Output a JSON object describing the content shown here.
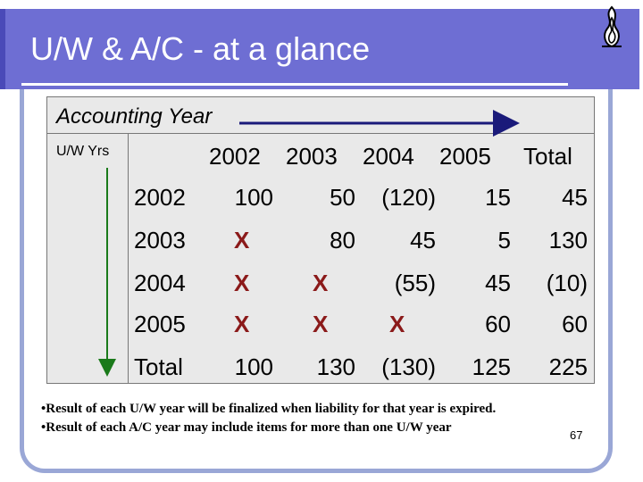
{
  "slide": {
    "title": "U/W & A/C - at a glance",
    "page_number": "67",
    "logo_icon": "flame-emblem-icon"
  },
  "table": {
    "accounting_year_label": "Accounting Year",
    "uw_years_label": "U/W Yrs",
    "column_headers": [
      "2002",
      "2003",
      "2004",
      "2005",
      "Total"
    ],
    "rows": [
      {
        "year": "2002",
        "cells": [
          "100",
          "50",
          "(120)",
          "15",
          "45"
        ]
      },
      {
        "year": "2003",
        "cells": [
          "X",
          "80",
          "45",
          "5",
          "130"
        ]
      },
      {
        "year": "2004",
        "cells": [
          "X",
          "X",
          "(55)",
          "45",
          "(10)"
        ]
      },
      {
        "year": "2005",
        "cells": [
          "X",
          "X",
          "X",
          "60",
          "60"
        ]
      },
      {
        "year": "Total",
        "cells": [
          "100",
          "130",
          "(130)",
          "125",
          "225"
        ]
      }
    ]
  },
  "notes": [
    "•Result of each U/W year will be finalized when liability for that year is expired.",
    "•Result of each A/C year may include items for more than one U/W year"
  ],
  "colors": {
    "title_bar": "#6e6ed3",
    "frame": "#9aa7d6",
    "arrow": "#1a1a7a",
    "x_mark": "#8b1a1a"
  }
}
